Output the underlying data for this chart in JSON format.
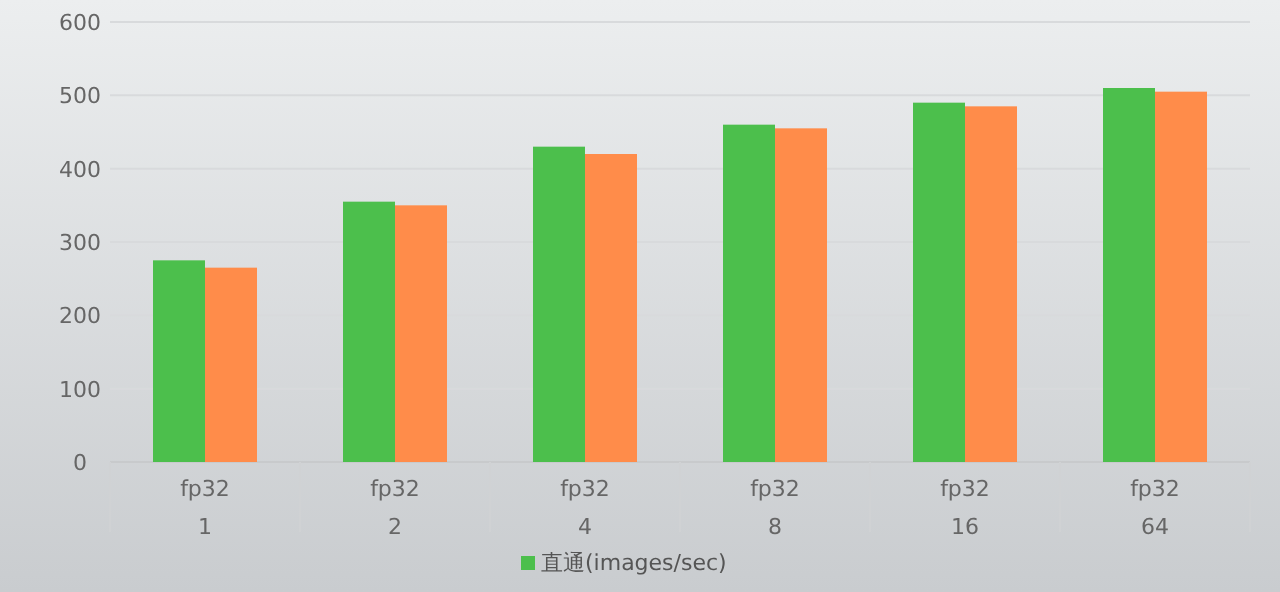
{
  "chart_data": {
    "type": "bar",
    "categories": [
      "fp32\n1",
      "fp32\n2",
      "fp32\n4",
      "fp32\n8",
      "fp32\n16",
      "fp32\n64"
    ],
    "series": [
      {
        "name": "直通(images/sec)",
        "color": "#4cbf4c",
        "values": [
          275,
          355,
          430,
          460,
          490,
          510
        ]
      },
      {
        "color": "#ff8c4a",
        "values": [
          265,
          350,
          420,
          455,
          485,
          505
        ]
      }
    ],
    "ylim": [
      0,
      600
    ],
    "yticks": [
      0,
      100,
      200,
      300,
      400,
      500,
      600
    ],
    "grid": "y",
    "legend": "bottom"
  }
}
